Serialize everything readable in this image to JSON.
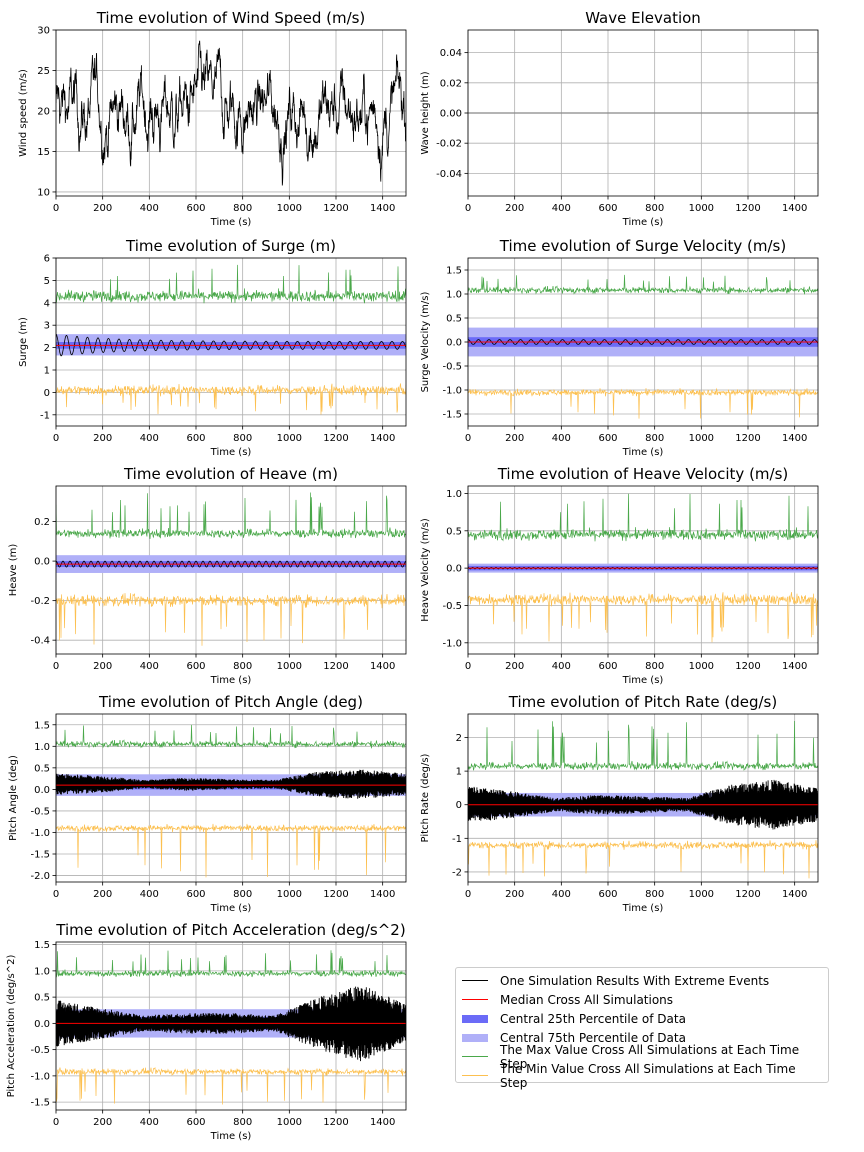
{
  "chart_data": [
    {
      "id": "wind",
      "type": "line",
      "title": "Time evolution of Wind Speed (m/s)",
      "xlabel": "Time (s)",
      "ylabel": "Wind speed (m/s)",
      "xlim": [
        0,
        1500
      ],
      "ylim": [
        9.5,
        30
      ],
      "xticks": [
        0,
        200,
        400,
        600,
        800,
        1000,
        1200,
        1400
      ],
      "yticks": [
        10,
        15,
        20,
        25,
        30
      ],
      "series": [
        {
          "name": "One Simulation Results With Extreme Events",
          "mean": 20,
          "spread": 3.5,
          "min": 10.3,
          "max": 29.3
        }
      ]
    },
    {
      "id": "wave",
      "type": "line",
      "title": "Wave Elevation",
      "xlabel": "Time (s)",
      "ylabel": "Wave height (m)",
      "xlim": [
        0,
        1500
      ],
      "ylim": [
        -0.055,
        0.055
      ],
      "xticks": [
        0,
        200,
        400,
        600,
        800,
        1000,
        1200,
        1400
      ],
      "yticks": [
        -0.04,
        -0.02,
        0.0,
        0.02,
        0.04
      ],
      "series": [
        {
          "name": "Wave elevation",
          "constant": 0.0
        }
      ]
    },
    {
      "id": "surge",
      "type": "line",
      "title": "Time evolution of Surge (m)",
      "xlabel": "Time (s)",
      "ylabel": "Surge (m)",
      "xlim": [
        0,
        1500
      ],
      "ylim": [
        -1.5,
        6
      ],
      "xticks": [
        0,
        200,
        400,
        600,
        800,
        1000,
        1200,
        1400
      ],
      "yticks": [
        -1,
        0,
        1,
        2,
        3,
        4,
        5,
        6
      ],
      "median": 2.1,
      "p25": [
        1.95,
        2.25
      ],
      "p75": [
        1.65,
        2.6
      ],
      "max": {
        "mean": 4.3,
        "spread": 0.35,
        "peak": 5.7
      },
      "min": {
        "mean": 0.1,
        "spread": 0.3,
        "low": -1.0
      },
      "one_sim": {
        "type": "damped-oscillation",
        "amp": 0.5,
        "period": 45,
        "offset": 2.1
      }
    },
    {
      "id": "surgevel",
      "type": "line",
      "title": "Time evolution of Surge Velocity (m/s)",
      "xlabel": "Time (s)",
      "ylabel": "Surge Velocity (m/s)",
      "xlim": [
        0,
        1500
      ],
      "ylim": [
        -1.75,
        1.75
      ],
      "xticks": [
        0,
        200,
        400,
        600,
        800,
        1000,
        1200,
        1400
      ],
      "yticks": [
        -1.5,
        -1.0,
        -0.5,
        0.0,
        0.5,
        1.0,
        1.5
      ],
      "median": 0.0,
      "p25": [
        -0.1,
        0.1
      ],
      "p75": [
        -0.3,
        0.3
      ],
      "max": {
        "mean": 1.08,
        "spread": 0.09,
        "peak": 1.4
      },
      "min": {
        "mean": -1.05,
        "spread": 0.09,
        "low": -1.6
      },
      "one_sim": {
        "type": "oscillation",
        "amp": 0.05,
        "period": 45,
        "offset": 0.0
      }
    },
    {
      "id": "heave",
      "type": "line",
      "title": "Time evolution of Heave (m)",
      "xlabel": "Time (s)",
      "ylabel": "Heave (m)",
      "xlim": [
        0,
        1500
      ],
      "ylim": [
        -0.47,
        0.38
      ],
      "xticks": [
        0,
        200,
        400,
        600,
        800,
        1000,
        1200,
        1400
      ],
      "yticks": [
        -0.4,
        -0.2,
        0.0,
        0.2
      ],
      "median": -0.015,
      "p25": [
        -0.03,
        0.0
      ],
      "p75": [
        -0.06,
        0.03
      ],
      "max": {
        "mean": 0.14,
        "spread": 0.03,
        "peak": 0.35
      },
      "min": {
        "mean": -0.2,
        "spread": 0.04,
        "low": -0.43
      },
      "one_sim": {
        "type": "oscillation",
        "amp": 0.015,
        "period": 30,
        "offset": -0.015
      }
    },
    {
      "id": "heavevel",
      "type": "line",
      "title": "Time evolution of Heave Velocity (m/s)",
      "xlabel": "Time (s)",
      "ylabel": "Heave Velocity (m/s)",
      "xlim": [
        0,
        1500
      ],
      "ylim": [
        -1.15,
        1.1
      ],
      "xticks": [
        0,
        200,
        400,
        600,
        800,
        1000,
        1200,
        1400
      ],
      "yticks": [
        -1.0,
        -0.5,
        0.0,
        0.5,
        1.0
      ],
      "median": 0.0,
      "p25": [
        -0.03,
        0.03
      ],
      "p75": [
        -0.06,
        0.06
      ],
      "max": {
        "mean": 0.45,
        "spread": 0.1,
        "peak": 1.0
      },
      "min": {
        "mean": -0.42,
        "spread": 0.1,
        "low": -1.0
      },
      "one_sim": {
        "type": "oscillation",
        "amp": 0.01,
        "period": 20,
        "offset": 0.0
      }
    },
    {
      "id": "pitch",
      "type": "line",
      "title": "Time evolution of Pitch Angle (deg)",
      "xlabel": "Time (s)",
      "ylabel": "Pitch Angle (deg)",
      "xlim": [
        0,
        1500
      ],
      "ylim": [
        -2.15,
        1.75
      ],
      "xticks": [
        0,
        200,
        400,
        600,
        800,
        1000,
        1200,
        1400
      ],
      "yticks": [
        -2.0,
        -1.5,
        -1.0,
        -0.5,
        0.0,
        0.5,
        1.0,
        1.5
      ],
      "median": 0.1,
      "p25": [
        0.0,
        0.2
      ],
      "p75": [
        -0.15,
        0.35
      ],
      "max": {
        "mean": 1.05,
        "spread": 0.1,
        "peak": 1.5
      },
      "min": {
        "mean": -0.9,
        "spread": 0.1,
        "low": -2.05
      },
      "one_sim": {
        "type": "dense-noise",
        "offset": 0.12,
        "env": [
          0.25,
          0.2,
          0.1,
          0.15,
          0.12,
          0.1,
          0.3,
          0.35,
          0.25
        ]
      }
    },
    {
      "id": "pitchrate",
      "type": "line",
      "title": "Time evolution of Pitch Rate (deg/s)",
      "xlabel": "Time (s)",
      "ylabel": "Pitch Rate (deg/s)",
      "xlim": [
        0,
        1500
      ],
      "ylim": [
        -2.3,
        2.7
      ],
      "xticks": [
        0,
        200,
        400,
        600,
        800,
        1000,
        1200,
        1400
      ],
      "yticks": [
        -2,
        -1,
        0,
        1,
        2
      ],
      "median": 0.0,
      "p25": [
        -0.15,
        0.15
      ],
      "p75": [
        -0.35,
        0.35
      ],
      "max": {
        "mean": 1.15,
        "spread": 0.15,
        "peak": 2.5
      },
      "min": {
        "mean": -1.2,
        "spread": 0.15,
        "low": -2.2
      },
      "one_sim": {
        "type": "dense-noise",
        "offset": 0.0,
        "env": [
          0.55,
          0.4,
          0.2,
          0.3,
          0.25,
          0.2,
          0.6,
          0.75,
          0.5
        ]
      }
    },
    {
      "id": "pitchacc",
      "type": "line",
      "title": "Time evolution of Pitch Acceleration (deg/s^2)",
      "xlabel": "Time (s)",
      "ylabel": "Pitch Acceleration (deg/s^2)",
      "xlim": [
        0,
        1500
      ],
      "ylim": [
        -1.65,
        1.55
      ],
      "xticks": [
        0,
        200,
        400,
        600,
        800,
        1000,
        1200,
        1400
      ],
      "yticks": [
        -1.5,
        -1.0,
        -0.5,
        0.0,
        0.5,
        1.0,
        1.5
      ],
      "median": 0.0,
      "p25": [
        -0.12,
        0.12
      ],
      "p75": [
        -0.27,
        0.27
      ],
      "max": {
        "mean": 0.95,
        "spread": 0.08,
        "peak": 1.4
      },
      "min": {
        "mean": -0.92,
        "spread": 0.08,
        "low": -1.55
      },
      "one_sim": {
        "type": "dense-noise",
        "offset": 0.0,
        "env": [
          0.45,
          0.3,
          0.15,
          0.2,
          0.2,
          0.15,
          0.5,
          0.75,
          0.35
        ]
      }
    }
  ],
  "colors": {
    "one_sim": "#000000",
    "median": "#ff0000",
    "p25": "#6b6bf7",
    "p75": "#b0b0f8",
    "max": "#4aa84a",
    "min": "#fcc050"
  },
  "legend": [
    {
      "label": "One Simulation Results With Extreme Events",
      "color": "#000000",
      "style": "line"
    },
    {
      "label": "Median Cross All Simulations",
      "color": "#ff0000",
      "style": "line"
    },
    {
      "label": "Central 25th Percentile of Data",
      "color": "#6b6bf7",
      "style": "band"
    },
    {
      "label": "Central 75th Percentile of Data",
      "color": "#b0b0f8",
      "style": "band"
    },
    {
      "label": "The Max Value Cross All Simulations at Each Time Step",
      "color": "#4aa84a",
      "style": "line"
    },
    {
      "label": "The Min Value Cross All Simulations at Each Time Step",
      "color": "#fcc050",
      "style": "line"
    }
  ]
}
